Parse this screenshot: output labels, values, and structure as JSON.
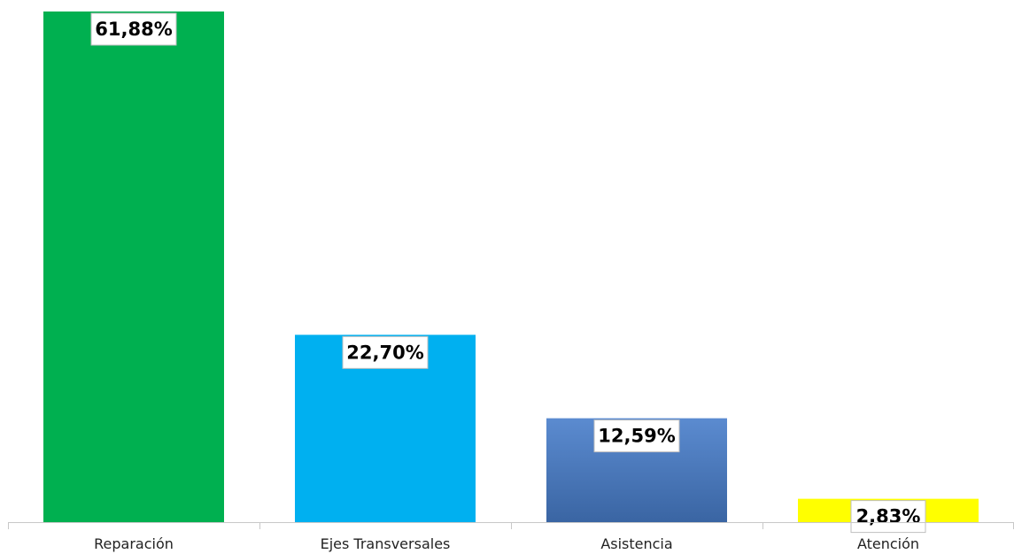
{
  "chart_data": {
    "type": "bar",
    "categories": [
      "Reparación",
      "Ejes Transversales",
      "Asistencia",
      "Atención"
    ],
    "values": [
      61.88,
      22.7,
      12.59,
      2.83
    ],
    "data_labels": [
      "61,88%",
      "22,70%",
      "12,59%",
      "2,83%"
    ],
    "unit": "%",
    "colors": [
      "#00B050",
      "#00B0F0",
      "#4472C4",
      "#FFFF00"
    ],
    "gradient_bars": [
      false,
      false,
      true,
      false
    ],
    "title": "",
    "xlabel": "",
    "ylabel": "",
    "ylim": [
      0,
      61.88
    ],
    "grid": false,
    "legend": "none"
  }
}
